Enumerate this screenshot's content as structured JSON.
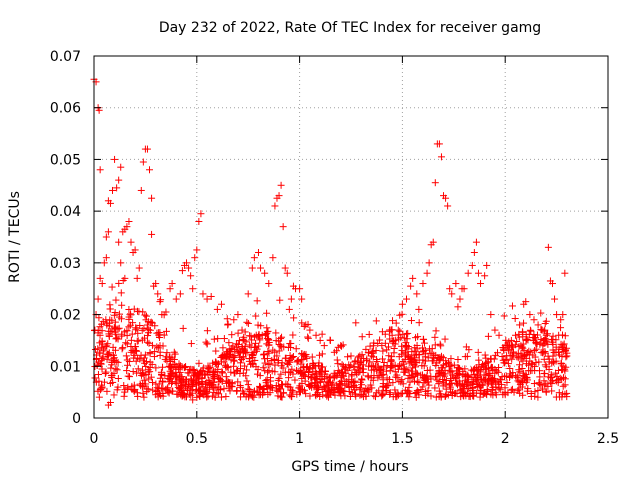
{
  "chart_data": {
    "type": "scatter",
    "title": "Day 232 of 2022, Rate Of TEC Index for receiver gamg",
    "xlabel": "GPS time / hours",
    "ylabel": "ROTI / TECUs",
    "xlim": [
      0,
      2.5
    ],
    "ylim": [
      0,
      0.07
    ],
    "xticks": [
      0,
      0.5,
      1,
      1.5,
      2,
      2.5
    ],
    "xtick_labels": [
      "0",
      "0.5",
      "1",
      "1.5",
      "2",
      "2.5"
    ],
    "yticks": [
      0,
      0.01,
      0.02,
      0.03,
      0.04,
      0.05,
      0.06,
      0.07
    ],
    "ytick_labels": [
      "0",
      "0.01",
      "0.02",
      "0.03",
      "0.04",
      "0.05",
      "0.06",
      "0.07"
    ],
    "grid": true,
    "marker": "+",
    "series_color": "#ff0000",
    "series": [
      {
        "name": "ROTI",
        "points": [
          [
            0.0,
            0.0655
          ],
          [
            0.01,
            0.065
          ],
          [
            0.02,
            0.06
          ],
          [
            0.025,
            0.0595
          ],
          [
            0.03,
            0.048
          ],
          [
            0.01,
            0.02
          ],
          [
            0.02,
            0.023
          ],
          [
            0.03,
            0.027
          ],
          [
            0.04,
            0.026
          ],
          [
            0.05,
            0.03
          ],
          [
            0.06,
            0.031
          ],
          [
            0.06,
            0.035
          ],
          [
            0.07,
            0.036
          ],
          [
            0.07,
            0.042
          ],
          [
            0.08,
            0.0415
          ],
          [
            0.09,
            0.044
          ],
          [
            0.1,
            0.05
          ],
          [
            0.11,
            0.0445
          ],
          [
            0.12,
            0.046
          ],
          [
            0.13,
            0.0485
          ],
          [
            0.14,
            0.036
          ],
          [
            0.15,
            0.0365
          ],
          [
            0.16,
            0.037
          ],
          [
            0.17,
            0.038
          ],
          [
            0.12,
            0.034
          ],
          [
            0.13,
            0.03
          ],
          [
            0.15,
            0.027
          ],
          [
            0.18,
            0.034
          ],
          [
            0.19,
            0.032
          ],
          [
            0.2,
            0.0325
          ],
          [
            0.21,
            0.027
          ],
          [
            0.22,
            0.029
          ],
          [
            0.23,
            0.044
          ],
          [
            0.24,
            0.0495
          ],
          [
            0.25,
            0.052
          ],
          [
            0.26,
            0.052
          ],
          [
            0.27,
            0.048
          ],
          [
            0.28,
            0.0425
          ],
          [
            0.28,
            0.0355
          ],
          [
            0.29,
            0.0255
          ],
          [
            0.3,
            0.026
          ],
          [
            0.31,
            0.024
          ],
          [
            0.33,
            0.02
          ],
          [
            0.35,
            0.0205
          ],
          [
            0.37,
            0.025
          ],
          [
            0.38,
            0.026
          ],
          [
            0.4,
            0.023
          ],
          [
            0.42,
            0.024
          ],
          [
            0.43,
            0.0285
          ],
          [
            0.44,
            0.0295
          ],
          [
            0.45,
            0.03
          ],
          [
            0.46,
            0.029
          ],
          [
            0.47,
            0.0275
          ],
          [
            0.48,
            0.025
          ],
          [
            0.49,
            0.031
          ],
          [
            0.5,
            0.0325
          ],
          [
            0.51,
            0.038
          ],
          [
            0.52,
            0.0395
          ],
          [
            0.53,
            0.024
          ],
          [
            0.55,
            0.023
          ],
          [
            0.57,
            0.0235
          ],
          [
            0.6,
            0.021
          ],
          [
            0.62,
            0.022
          ],
          [
            0.65,
            0.018
          ],
          [
            0.68,
            0.019
          ],
          [
            0.7,
            0.02
          ],
          [
            0.72,
            0.017
          ],
          [
            0.75,
            0.024
          ],
          [
            0.77,
            0.029
          ],
          [
            0.78,
            0.031
          ],
          [
            0.8,
            0.032
          ],
          [
            0.81,
            0.029
          ],
          [
            0.83,
            0.028
          ],
          [
            0.85,
            0.026
          ],
          [
            0.87,
            0.031
          ],
          [
            0.88,
            0.041
          ],
          [
            0.89,
            0.0425
          ],
          [
            0.9,
            0.043
          ],
          [
            0.91,
            0.045
          ],
          [
            0.92,
            0.037
          ],
          [
            0.93,
            0.029
          ],
          [
            0.94,
            0.028
          ],
          [
            0.95,
            0.021
          ],
          [
            0.96,
            0.023
          ],
          [
            0.97,
            0.0255
          ],
          [
            0.98,
            0.025
          ],
          [
            1.0,
            0.025
          ],
          [
            1.01,
            0.023
          ],
          [
            1.03,
            0.018
          ],
          [
            1.05,
            0.017
          ],
          [
            1.08,
            0.016
          ],
          [
            1.1,
            0.015
          ],
          [
            1.12,
            0.014
          ],
          [
            1.15,
            0.015
          ],
          [
            1.18,
            0.013
          ],
          [
            1.2,
            0.014
          ],
          [
            1.25,
            0.012
          ],
          [
            1.3,
            0.011
          ],
          [
            1.35,
            0.012
          ],
          [
            1.4,
            0.014
          ],
          [
            1.45,
            0.016
          ],
          [
            1.48,
            0.017
          ],
          [
            1.5,
            0.022
          ],
          [
            1.52,
            0.023
          ],
          [
            1.54,
            0.0255
          ],
          [
            1.55,
            0.027
          ],
          [
            1.57,
            0.024
          ],
          [
            1.58,
            0.021
          ],
          [
            1.6,
            0.026
          ],
          [
            1.62,
            0.028
          ],
          [
            1.63,
            0.03
          ],
          [
            1.64,
            0.0335
          ],
          [
            1.65,
            0.034
          ],
          [
            1.66,
            0.0455
          ],
          [
            1.67,
            0.053
          ],
          [
            1.68,
            0.053
          ],
          [
            1.69,
            0.0505
          ],
          [
            1.7,
            0.043
          ],
          [
            1.71,
            0.0425
          ],
          [
            1.72,
            0.041
          ],
          [
            1.73,
            0.025
          ],
          [
            1.74,
            0.024
          ],
          [
            1.76,
            0.026
          ],
          [
            1.77,
            0.0215
          ],
          [
            1.78,
            0.023
          ],
          [
            1.79,
            0.025
          ],
          [
            1.8,
            0.025
          ],
          [
            1.82,
            0.028
          ],
          [
            1.84,
            0.0295
          ],
          [
            1.85,
            0.032
          ],
          [
            1.86,
            0.034
          ],
          [
            1.87,
            0.028
          ],
          [
            1.88,
            0.026
          ],
          [
            1.9,
            0.0275
          ],
          [
            1.91,
            0.0295
          ],
          [
            1.93,
            0.02
          ],
          [
            1.95,
            0.017
          ],
          [
            1.97,
            0.016
          ],
          [
            2.0,
            0.014
          ],
          [
            2.03,
            0.015
          ],
          [
            2.05,
            0.016
          ],
          [
            2.07,
            0.018
          ],
          [
            2.09,
            0.022
          ],
          [
            2.1,
            0.0225
          ],
          [
            2.12,
            0.02
          ],
          [
            2.14,
            0.019
          ],
          [
            2.16,
            0.018
          ],
          [
            2.18,
            0.017
          ],
          [
            2.2,
            0.016
          ],
          [
            2.21,
            0.033
          ],
          [
            2.22,
            0.0265
          ],
          [
            2.23,
            0.026
          ],
          [
            2.24,
            0.023
          ],
          [
            2.25,
            0.02
          ],
          [
            2.26,
            0.016
          ],
          [
            2.27,
            0.019
          ],
          [
            2.28,
            0.02
          ],
          [
            2.29,
            0.028
          ],
          [
            2.3,
            0.012
          ],
          [
            0.07,
            0.0025
          ],
          [
            0.08,
            0.003
          ],
          [
            0.5,
            0.004
          ],
          [
            0.48,
            0.0035
          ],
          [
            1.0,
            0.005
          ],
          [
            1.3,
            0.0045
          ],
          [
            1.8,
            0.005
          ],
          [
            2.0,
            0.0045
          ],
          [
            2.2,
            0.005
          ],
          [
            0.3,
            0.0045
          ]
        ]
      }
    ]
  }
}
